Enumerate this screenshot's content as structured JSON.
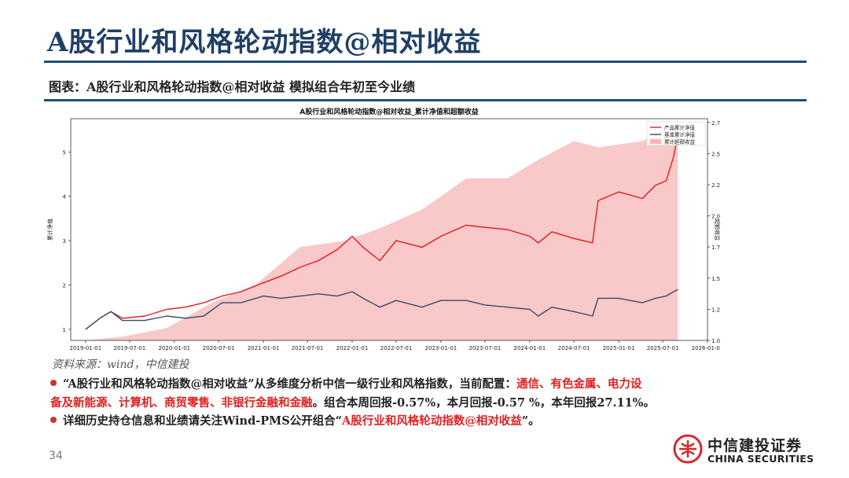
{
  "slide": {
    "title": "A股行业和风格轮动指数@相对收益",
    "subtitle": "图表：A股行业和风格轮动指数@相对收益 模拟组合年初至今业绩",
    "source": "资料来源：wind，中信建投",
    "page_number": "34",
    "bullets": {
      "b1_part1": "“A股行业和风格轮动指数@相对收益”从多维度分析中信一级行业和风格指数，当前配置：",
      "b1_red1": "通信、有色金属、电力设",
      "b1_red2": "备及新能源、计算机、商贸零售、非银行金融和金融",
      "b1_part2": "。组合本周回报-0.57%，本月回报-0.57 %，本年回报27.11%。",
      "b2_part1": "详细历史持仓信息和业绩请关注Wind-PMS公开组合“",
      "b2_red": "A股行业和风格轮动指数@相对收益",
      "b2_part2": "”。"
    },
    "logo": {
      "name_cn": "中信建投证券",
      "name_en": "CHINA SECURITIES",
      "icon": "china-securities-logo-icon",
      "color": "#d7282f"
    }
  },
  "chart_data": {
    "type": "line",
    "title": "A股行业和风格轮动指数@相对收益_累计净值和超额收益",
    "ylabel_left": "累计净值",
    "ylabel_right": "超额收益",
    "ylim_left": [
      0.75,
      5.75
    ],
    "yticks_left": [
      "1",
      "2",
      "3",
      "4",
      "5"
    ],
    "ylim_right": [
      1.0,
      2.78
    ],
    "yticks_right": [
      "1.00",
      "1.25",
      "1.50",
      "1.75",
      "2.00",
      "2.25",
      "2.50",
      "2.75"
    ],
    "xlim": [
      "2018-11-01",
      "2026-01-01"
    ],
    "xticks": [
      "2019-01-01",
      "2019-07-01",
      "2020-01-01",
      "2020-07-01",
      "2021-01-01",
      "2021-07-01",
      "2022-01-01",
      "2022-07-01",
      "2023-01-01",
      "2023-07-01",
      "2024-01-01",
      "2024-07-01",
      "2025-01-01",
      "2025-07-01",
      "2026-01-01"
    ],
    "legend_position": "top-right",
    "grid": false,
    "series": [
      {
        "name": "产品累计净值",
        "axis": "left",
        "color": "#e41a1c",
        "x": [
          "2019-01-01",
          "2019-03-01",
          "2019-04-15",
          "2019-06-01",
          "2019-09-01",
          "2019-12-01",
          "2020-02-15",
          "2020-05-01",
          "2020-07-15",
          "2020-10-01",
          "2021-01-01",
          "2021-03-15",
          "2021-06-01",
          "2021-08-15",
          "2021-11-01",
          "2022-01-01",
          "2022-02-15",
          "2022-04-25",
          "2022-07-01",
          "2022-10-15",
          "2023-01-01",
          "2023-04-15",
          "2023-07-01",
          "2023-10-01",
          "2024-01-01",
          "2024-02-05",
          "2024-04-01",
          "2024-07-01",
          "2024-09-15",
          "2024-10-08",
          "2025-01-01",
          "2025-04-08",
          "2025-06-01",
          "2025-07-15",
          "2025-08-15",
          "2025-09-01"
        ],
        "values": [
          1.0,
          1.25,
          1.4,
          1.25,
          1.3,
          1.45,
          1.5,
          1.6,
          1.75,
          1.85,
          2.05,
          2.2,
          2.4,
          2.55,
          2.8,
          3.1,
          2.85,
          2.55,
          3.0,
          2.85,
          3.1,
          3.35,
          3.3,
          3.25,
          3.1,
          2.95,
          3.2,
          3.05,
          2.95,
          3.9,
          4.1,
          3.95,
          4.25,
          4.35,
          4.9,
          5.4
        ]
      },
      {
        "name": "基准累计净值",
        "axis": "left",
        "color": "#3b4a6b",
        "x": [
          "2019-01-01",
          "2019-03-01",
          "2019-04-15",
          "2019-06-01",
          "2019-09-01",
          "2019-12-01",
          "2020-02-15",
          "2020-05-01",
          "2020-07-15",
          "2020-10-01",
          "2021-01-01",
          "2021-03-15",
          "2021-06-01",
          "2021-08-15",
          "2021-11-01",
          "2022-01-01",
          "2022-02-15",
          "2022-04-25",
          "2022-07-01",
          "2022-10-15",
          "2023-01-01",
          "2023-04-15",
          "2023-07-01",
          "2023-10-01",
          "2024-01-01",
          "2024-02-05",
          "2024-04-01",
          "2024-07-01",
          "2024-09-15",
          "2024-10-08",
          "2025-01-01",
          "2025-04-08",
          "2025-06-01",
          "2025-07-15",
          "2025-08-15",
          "2025-09-01"
        ],
        "values": [
          1.0,
          1.25,
          1.4,
          1.2,
          1.2,
          1.3,
          1.25,
          1.3,
          1.6,
          1.6,
          1.75,
          1.7,
          1.75,
          1.8,
          1.75,
          1.85,
          1.7,
          1.5,
          1.65,
          1.5,
          1.65,
          1.65,
          1.55,
          1.5,
          1.45,
          1.3,
          1.5,
          1.4,
          1.3,
          1.7,
          1.7,
          1.6,
          1.7,
          1.75,
          1.85,
          1.9
        ]
      },
      {
        "name": "累计超额收益",
        "axis": "right",
        "type": "area",
        "color": "#f7b5b5",
        "x": [
          "2019-01-01",
          "2019-06-01",
          "2019-12-01",
          "2020-06-01",
          "2020-12-01",
          "2021-06-01",
          "2021-12-01",
          "2022-04-25",
          "2022-10-15",
          "2023-04-15",
          "2023-10-01",
          "2024-02-05",
          "2024-07-01",
          "2024-10-08",
          "2025-04-08",
          "2025-07-15",
          "2025-09-01"
        ],
        "values": [
          1.0,
          1.03,
          1.1,
          1.3,
          1.45,
          1.75,
          1.8,
          1.9,
          2.05,
          2.3,
          2.3,
          2.45,
          2.6,
          2.55,
          2.6,
          2.7,
          2.75
        ]
      }
    ]
  }
}
